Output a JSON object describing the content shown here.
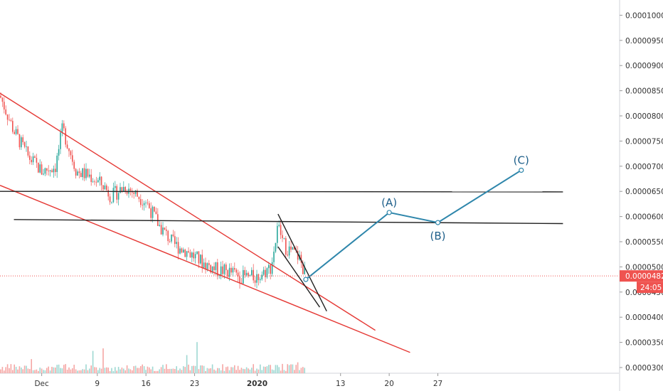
{
  "chart_data": {
    "type": "candlestick",
    "y_axis": {
      "range": [
        2.9e-05,
        0.000103
      ],
      "ticks": [
        "0.0000300",
        "0.0000350",
        "0.0000400",
        "0.0000450",
        "0.0000500",
        "0.0000550",
        "0.0000600",
        "0.0000650",
        "0.0000700",
        "0.0000750",
        "0.0000800",
        "0.0000850",
        "0.0000900",
        "0.0000950",
        "0.0001000"
      ]
    },
    "x_axis": {
      "start_date": "2019-11-25",
      "end_date": "2020-02-14",
      "ticks": [
        {
          "label": "Dec",
          "date": "2019-12-01",
          "bold": false
        },
        {
          "label": "9",
          "date": "2019-12-09",
          "bold": false
        },
        {
          "label": "16",
          "date": "2019-12-16",
          "bold": false
        },
        {
          "label": "23",
          "date": "2019-12-23",
          "bold": false
        },
        {
          "label": "2020",
          "date": "2020-01-01",
          "bold": true
        },
        {
          "label": "13",
          "date": "2020-01-13",
          "bold": false
        },
        {
          "label": "20",
          "date": "2020-01-20",
          "bold": false
        },
        {
          "label": "27",
          "date": "2020-01-27",
          "bold": false
        }
      ]
    },
    "price_path": [
      [
        "2019-11-25",
        8.4e-05
      ],
      [
        "2019-11-27",
        7.7e-05
      ],
      [
        "2019-11-29",
        7.2e-05
      ],
      [
        "2019-12-01",
        6.9e-05
      ],
      [
        "2019-12-03",
        7e-05
      ],
      [
        "2019-12-04",
        7.75e-05
      ],
      [
        "2019-12-06",
        6.9e-05
      ],
      [
        "2019-12-08",
        6.8e-05
      ],
      [
        "2019-12-10",
        6.6e-05
      ],
      [
        "2019-12-11",
        6.4e-05
      ],
      [
        "2019-12-13",
        6.6e-05
      ],
      [
        "2019-12-14",
        6.5e-05
      ],
      [
        "2019-12-16",
        6.3e-05
      ],
      [
        "2019-12-18",
        5.8e-05
      ],
      [
        "2019-12-20",
        5.45e-05
      ],
      [
        "2019-12-22",
        5.3e-05
      ],
      [
        "2019-12-24",
        5.1e-05
      ],
      [
        "2019-12-26",
        4.95e-05
      ],
      [
        "2019-12-28",
        4.9e-05
      ],
      [
        "2019-12-30",
        4.8e-05
      ],
      [
        "2020-01-01",
        4.8e-05
      ],
      [
        "2020-01-03",
        5e-05
      ],
      [
        "2020-01-04",
        5.8e-05
      ],
      [
        "2020-01-05",
        5.4e-05
      ],
      [
        "2020-01-06",
        5.3e-05
      ],
      [
        "2020-01-07",
        5.2e-05
      ],
      [
        "2020-01-08",
        4.82e-05
      ]
    ],
    "last_price": {
      "value": 4.82e-05,
      "label": "0.0000482",
      "countdown": "24:05"
    },
    "lines": [
      {
        "name": "upper-channel",
        "color": "#e53935",
        "points": [
          [
            "2019-11-25",
            8.45e-05
          ],
          [
            "2020-01-18",
            3.74e-05
          ]
        ]
      },
      {
        "name": "lower-channel",
        "color": "#e53935",
        "points": [
          [
            "2019-11-25",
            6.62e-05
          ],
          [
            "2020-01-23",
            3.3e-05
          ]
        ]
      },
      {
        "name": "resistance-1",
        "color": "#222222",
        "points": [
          [
            "2019-11-25",
            6.5e-05
          ],
          [
            "2020-02-14",
            6.49e-05
          ]
        ]
      },
      {
        "name": "resistance-2",
        "color": "#222222",
        "points": [
          [
            "2019-11-27",
            5.94e-05
          ],
          [
            "2020-02-14",
            5.86e-05
          ]
        ]
      },
      {
        "name": "wedge-top",
        "color": "#222222",
        "points": [
          [
            "2020-01-04",
            6.05e-05
          ],
          [
            "2020-01-11",
            4.12e-05
          ]
        ]
      },
      {
        "name": "wedge-bottom",
        "color": "#222222",
        "points": [
          [
            "2020-01-04",
            5.4e-05
          ],
          [
            "2020-01-10",
            4.2e-05
          ]
        ]
      }
    ],
    "forecast": {
      "color": "#2e86ab",
      "points": [
        {
          "date": "2020-01-08",
          "value": 4.75e-05,
          "label": ""
        },
        {
          "date": "2020-01-20",
          "value": 6.08e-05,
          "label": "(A)"
        },
        {
          "date": "2020-01-27",
          "value": 5.88e-05,
          "label": "(B)"
        },
        {
          "date": "2020-02-08",
          "value": 6.92e-05,
          "label": "(C)"
        }
      ]
    },
    "colors": {
      "up": "#26a69a",
      "down": "#ef5350",
      "volume_up": "#9ed8d2",
      "volume_down": "#f5a7a5"
    }
  }
}
